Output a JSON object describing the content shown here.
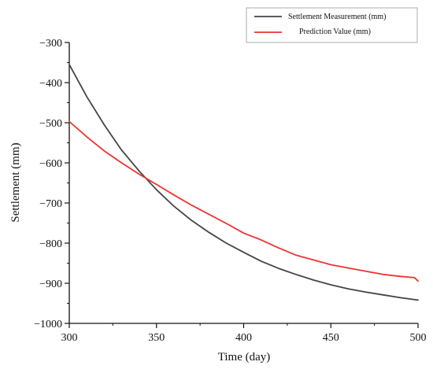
{
  "chart_data": {
    "type": "line",
    "xlabel": "Time  (day)",
    "ylabel": "Settlement (mm)",
    "xlim": [
      300,
      500
    ],
    "ylim": [
      -1000,
      -300
    ],
    "x_ticks": [
      "300",
      "350",
      "400",
      "450",
      "500"
    ],
    "y_ticks": [
      "−300",
      "−400",
      "−500",
      "−600",
      "−700",
      "−800",
      "−900",
      "−1000"
    ],
    "grid": false,
    "legend_position": "top-right",
    "series": [
      {
        "name": "Settlement Measurement (mm)",
        "color": "#444444",
        "x": [
          300,
          310,
          320,
          330,
          340,
          350,
          360,
          370,
          380,
          390,
          400,
          410,
          420,
          430,
          440,
          450,
          460,
          470,
          480,
          490,
          500
        ],
        "y": [
          -355,
          -435,
          -505,
          -568,
          -620,
          -667,
          -708,
          -743,
          -773,
          -800,
          -823,
          -845,
          -863,
          -878,
          -892,
          -904,
          -914,
          -922,
          -929,
          -936,
          -942
        ]
      },
      {
        "name": "Prediction Value (mm)",
        "color": "#ee3333",
        "x": [
          300,
          310,
          320,
          330,
          340,
          350,
          360,
          370,
          380,
          390,
          400,
          410,
          420,
          430,
          440,
          450,
          460,
          470,
          480,
          490,
          498,
          500
        ],
        "y": [
          -497,
          -535,
          -570,
          -600,
          -628,
          -654,
          -680,
          -705,
          -728,
          -751,
          -775,
          -792,
          -812,
          -830,
          -842,
          -854,
          -862,
          -870,
          -878,
          -883,
          -886,
          -895
        ]
      }
    ]
  }
}
